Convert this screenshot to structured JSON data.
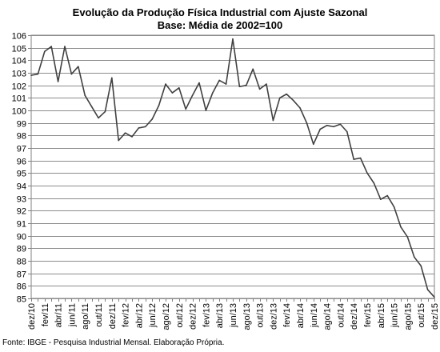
{
  "chart_data": {
    "type": "line",
    "title": "Evolução da Produção Física Industrial com Ajuste Sazonal",
    "subtitle": "Base: Média de 2002=100",
    "xlabel": "",
    "ylabel": "",
    "ylim": [
      85,
      106
    ],
    "yticks": [
      85,
      86,
      87,
      88,
      89,
      90,
      91,
      92,
      93,
      94,
      95,
      96,
      97,
      98,
      99,
      100,
      101,
      102,
      103,
      104,
      105,
      106
    ],
    "grid": true,
    "legend": "none",
    "line_color": "#404040",
    "x": [
      "dez/10",
      "jan/11",
      "fev/11",
      "mar/11",
      "abr/11",
      "mai/11",
      "jun/11",
      "jul/11",
      "ago/11",
      "set/11",
      "out/11",
      "nov/11",
      "dez/11",
      "jan/12",
      "fev/12",
      "mar/12",
      "abr/12",
      "mai/12",
      "jun/12",
      "jul/12",
      "ago/12",
      "set/12",
      "out/12",
      "nov/12",
      "dez/12",
      "jan/13",
      "fev/13",
      "mar/13",
      "abr/13",
      "mai/13",
      "jun/13",
      "jul/13",
      "ago/13",
      "set/13",
      "out/13",
      "nov/13",
      "dez/13",
      "jan/14",
      "fev/14",
      "mar/14",
      "abr/14",
      "mai/14",
      "jun/14",
      "jul/14",
      "ago/14",
      "set/14",
      "out/14",
      "nov/14",
      "dez/14",
      "jan/15",
      "fev/15",
      "mar/15",
      "abr/15",
      "mai/15",
      "jun/15",
      "jul/15",
      "ago/15",
      "set/15",
      "out/15",
      "nov/15",
      "dez/15"
    ],
    "xtick_labels": [
      "dez/10",
      "fev/11",
      "abr/11",
      "jun/11",
      "ago/11",
      "out/11",
      "dez/11",
      "fev/12",
      "abr/12",
      "jun/12",
      "ago/12",
      "out/12",
      "dez/12",
      "fev/13",
      "abr/13",
      "jun/13",
      "ago/13",
      "out/13",
      "dez/13",
      "fev/14",
      "abr/14",
      "jun/14",
      "ago/14",
      "out/14",
      "dez/14",
      "fev/15",
      "abr/15",
      "jun/15",
      "ago/15",
      "out/15",
      "dez/15"
    ],
    "series": [
      {
        "values": [
          102.8,
          102.9,
          104.7,
          105.1,
          102.3,
          105.1,
          102.9,
          103.5,
          101.2,
          100.3,
          99.4,
          99.9,
          102.6,
          97.6,
          98.2,
          97.9,
          98.6,
          98.7,
          99.3,
          100.4,
          102.1,
          101.4,
          101.8,
          100.1,
          101.2,
          102.2,
          100.0,
          101.4,
          102.4,
          102.1,
          105.7,
          101.9,
          102.0,
          103.3,
          101.7,
          102.1,
          99.2,
          101.0,
          101.3,
          100.8,
          100.2,
          99.0,
          97.3,
          98.5,
          98.8,
          98.7,
          98.9,
          98.3,
          96.1,
          96.2,
          95.0,
          94.2,
          92.9,
          93.2,
          92.3,
          90.7,
          89.9,
          88.3,
          87.6,
          85.7,
          85.1
        ]
      }
    ]
  },
  "footer": {
    "source": "Fonte: IBGE - Pesquisa Industrial Mensal. Elaboração Própria."
  }
}
